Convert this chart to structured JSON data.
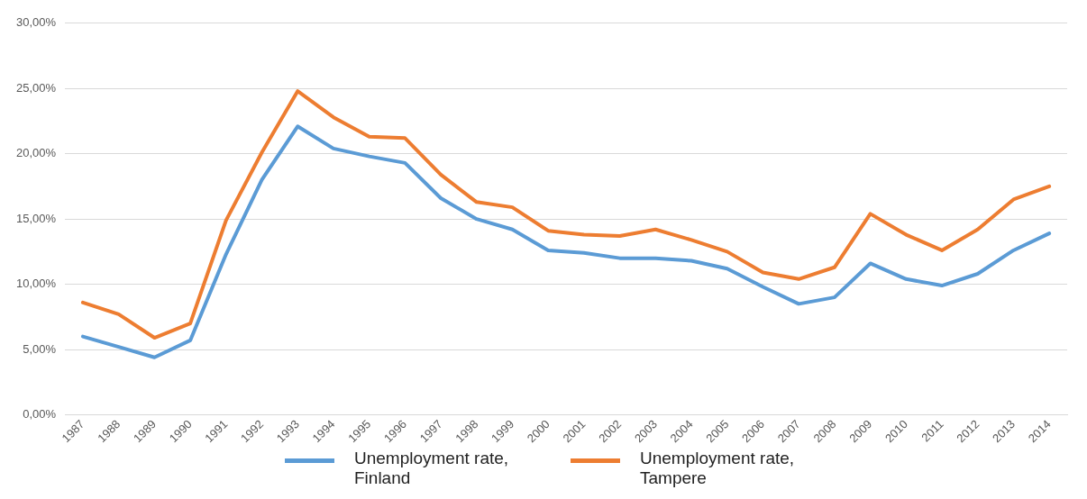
{
  "chart_data": {
    "type": "line",
    "categories": [
      "1987",
      "1988",
      "1989",
      "1990",
      "1991",
      "1992",
      "1993",
      "1994",
      "1995",
      "1996",
      "1997",
      "1998",
      "1999",
      "2000",
      "2001",
      "2002",
      "2003",
      "2004",
      "2005",
      "2006",
      "2007",
      "2008",
      "2009",
      "2010",
      "2011",
      "2012",
      "2013",
      "2014"
    ],
    "series": [
      {
        "name": "Unemployment rate, Finland",
        "color": "#5b9bd5",
        "values": [
          6.0,
          5.2,
          4.4,
          5.7,
          12.3,
          18.0,
          22.1,
          20.4,
          19.8,
          19.3,
          16.6,
          15.0,
          14.2,
          12.6,
          12.4,
          12.0,
          12.0,
          11.8,
          11.2,
          9.8,
          8.5,
          9.0,
          11.6,
          10.4,
          9.9,
          10.8,
          12.6,
          13.9
        ]
      },
      {
        "name": "Unemployment rate, Tampere",
        "color": "#ed7d31",
        "values": [
          8.6,
          7.7,
          5.9,
          7.0,
          14.9,
          20.1,
          24.8,
          22.8,
          21.3,
          21.2,
          18.4,
          16.3,
          15.9,
          14.1,
          13.8,
          13.7,
          14.2,
          13.4,
          12.5,
          10.9,
          10.4,
          11.3,
          15.4,
          13.8,
          12.6,
          14.2,
          16.5,
          17.5
        ]
      }
    ],
    "ylim": [
      0,
      30
    ],
    "yticks": [
      {
        "value": 0,
        "label": "0,00%"
      },
      {
        "value": 5,
        "label": "5,00%"
      },
      {
        "value": 10,
        "label": "10,00%"
      },
      {
        "value": 15,
        "label": "15,00%"
      },
      {
        "value": 20,
        "label": "20,00%"
      },
      {
        "value": 25,
        "label": "25,00%"
      },
      {
        "value": 30,
        "label": "30,00%"
      }
    ],
    "grid": "y",
    "legend": "bottom",
    "marker": "none",
    "line_style": "solid"
  }
}
